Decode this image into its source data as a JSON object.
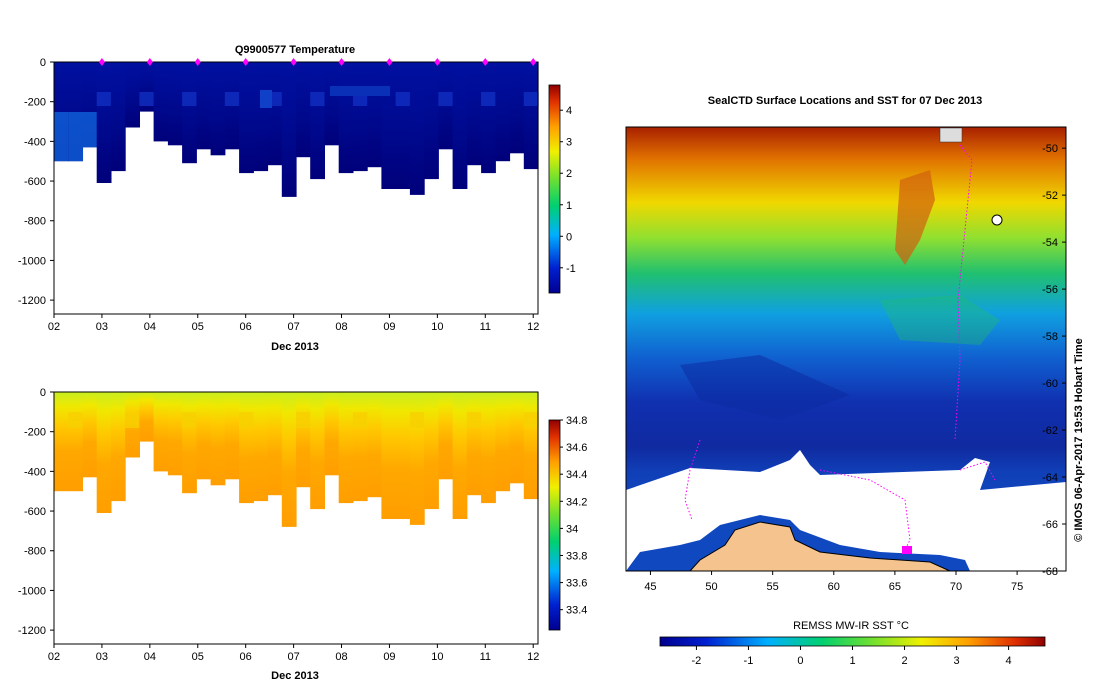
{
  "chart_data": [
    {
      "type": "heatmap",
      "title": "Q9900577  Temperature",
      "xlabel": "Dec 2013",
      "ylabel": "",
      "x_ticks": [
        "02",
        "03",
        "04",
        "05",
        "06",
        "07",
        "08",
        "09",
        "10",
        "11",
        "12"
      ],
      "xlim": [
        2,
        12.1
      ],
      "y_ticks": [
        0,
        -200,
        -400,
        -600,
        -800,
        -1000,
        -1200
      ],
      "ylim": [
        -1270,
        0
      ],
      "profile_markers": [
        3,
        4,
        5,
        6,
        7,
        8,
        9,
        10,
        11,
        12
      ],
      "profile_max_depth": [
        -500,
        -500,
        -430,
        -610,
        -550,
        -330,
        -250,
        -400,
        -420,
        -510,
        -440,
        -470,
        -440,
        -560,
        -550,
        -520,
        -680,
        -480,
        -590,
        -420,
        -560,
        -550,
        -530,
        -640,
        -640,
        -670,
        -590,
        -440,
        -640,
        -520,
        -560,
        -500,
        -460,
        -540
      ],
      "colorbar": {
        "ticks": [
          4,
          3,
          2,
          1,
          0,
          -1
        ],
        "range": [
          -1.8,
          4.8
        ]
      }
    },
    {
      "type": "heatmap",
      "title": "",
      "xlabel": "Dec 2013",
      "ylabel": "",
      "x_ticks": [
        "02",
        "03",
        "04",
        "05",
        "06",
        "07",
        "08",
        "09",
        "10",
        "11",
        "12"
      ],
      "xlim": [
        2,
        12.1
      ],
      "y_ticks": [
        0,
        -200,
        -400,
        -600,
        -800,
        -1000,
        -1200
      ],
      "ylim": [
        -1270,
        0
      ],
      "colorbar": {
        "ticks": [
          34.8,
          34.6,
          34.4,
          34.2,
          34,
          33.8,
          33.6,
          33.4
        ],
        "range": [
          33.25,
          34.8
        ]
      }
    },
    {
      "type": "heatmap",
      "title": "SealCTD Surface Locations and SST for 07 Dec 2013",
      "xlabel": "",
      "ylabel": "",
      "x_ticks": [
        "45",
        "50",
        "55",
        "60",
        "65",
        "70",
        "75"
      ],
      "xlim": [
        43,
        79
      ],
      "y_ticks": [
        "-50",
        "-52",
        "-54",
        "-56",
        "-58",
        "-60",
        "-62",
        "-64",
        "-66",
        "-68"
      ],
      "ylim": [
        -68,
        -49.1
      ],
      "colorbar": {
        "label": "REMSS MW-IR SST °C",
        "ticks": [
          "-2",
          "-1",
          "0",
          "1",
          "2",
          "3",
          "4"
        ],
        "range": [
          -2.7,
          4.7
        ]
      },
      "credit": "© IMOS 06-Apr-2017 19:53 Hobart Time"
    }
  ]
}
